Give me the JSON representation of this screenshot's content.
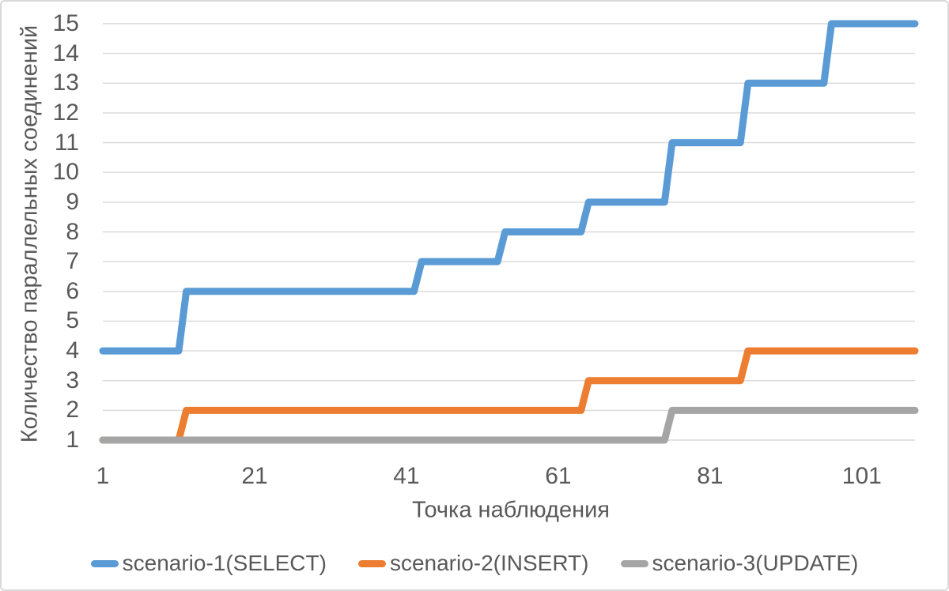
{
  "chart_data": {
    "type": "line",
    "line_style": "stepped-staircase",
    "title": "",
    "xlabel": "Точка наблюдения",
    "ylabel": "Количество параллельных соединений",
    "x_range": [
      1,
      108
    ],
    "y_range": [
      1,
      15
    ],
    "x_ticks": [
      1,
      21,
      41,
      61,
      81,
      101
    ],
    "y_ticks": [
      1,
      2,
      3,
      4,
      5,
      6,
      7,
      8,
      9,
      10,
      11,
      12,
      13,
      14,
      15
    ],
    "grid": "horizontal-only",
    "legend_position": "bottom",
    "segments_format": "[x_start, x_end, y_value]",
    "series": [
      {
        "name": "scenario-1(SELECT)",
        "color": "#5B9BD5",
        "segments": [
          [
            1,
            11,
            4
          ],
          [
            12,
            42,
            6
          ],
          [
            43,
            53,
            7
          ],
          [
            54,
            64,
            8
          ],
          [
            65,
            75,
            9
          ],
          [
            76,
            85,
            11
          ],
          [
            86,
            96,
            13
          ],
          [
            97,
            108,
            15
          ]
        ]
      },
      {
        "name": "scenario-2(INSERT)",
        "color": "#ED7D31",
        "segments": [
          [
            1,
            11,
            1
          ],
          [
            12,
            64,
            2
          ],
          [
            65,
            85,
            3
          ],
          [
            86,
            108,
            4
          ]
        ]
      },
      {
        "name": "scenario-3(UPDATE)",
        "color": "#A5A5A5",
        "segments": [
          [
            1,
            75,
            1
          ],
          [
            76,
            108,
            2
          ]
        ]
      }
    ]
  },
  "colors": {
    "text": "#595959",
    "gridline": "#D9D9D9",
    "frame_border": "#D9D9D9",
    "background": "#FFFFFF"
  }
}
